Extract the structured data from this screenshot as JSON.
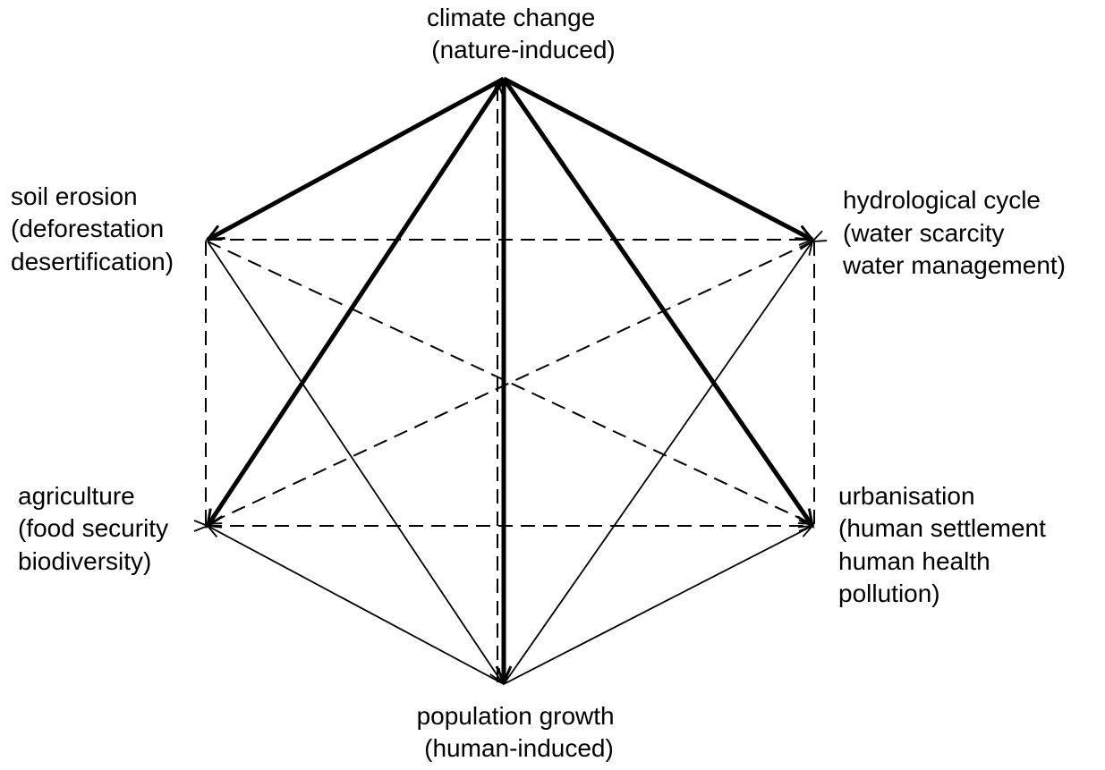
{
  "nodes": [
    {
      "lines": [
        "climate change",
        "(nature-induced)"
      ]
    },
    {
      "lines": [
        "soil erosion",
        "(deforestation",
        "desertification)"
      ]
    },
    {
      "lines": [
        "hydrological cycle",
        "(water scarcity",
        "water management)"
      ]
    },
    {
      "lines": [
        "agriculture",
        "(food security",
        "biodiversity)"
      ]
    },
    {
      "lines": [
        "urbanisation",
        "(human settlement",
        "human health",
        "pollution)"
      ]
    },
    {
      "lines": [
        "population growth",
        "(human-induced)"
      ]
    }
  ]
}
